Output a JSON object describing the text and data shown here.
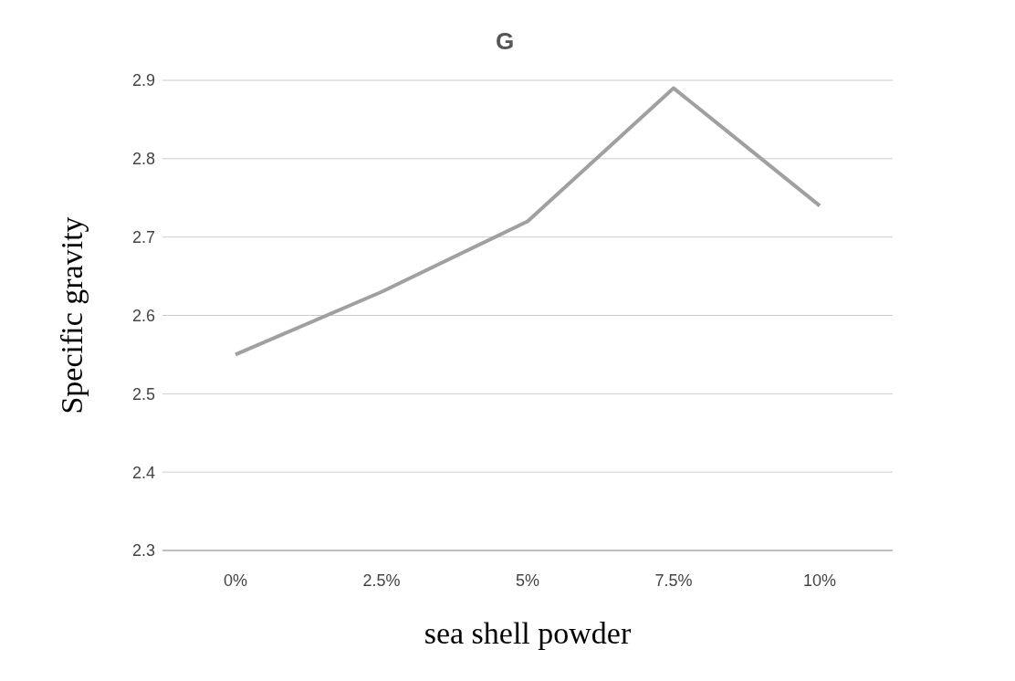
{
  "chart_data": {
    "type": "line",
    "title": "G",
    "xlabel": "sea shell powder",
    "ylabel": "Specific gravity",
    "categories": [
      "0%",
      "2.5%",
      "5%",
      "7.5%",
      "10%"
    ],
    "series": [
      {
        "color": "#a0a0a0",
        "values": [
          2.55,
          2.63,
          2.72,
          2.89,
          2.74
        ]
      }
    ],
    "ylim": [
      2.3,
      2.9
    ],
    "yticks": [
      2.3,
      2.4,
      2.5,
      2.6,
      2.7,
      2.8,
      2.9
    ],
    "grid": "y",
    "legend": false,
    "marker": "none",
    "line_style": "solid"
  }
}
